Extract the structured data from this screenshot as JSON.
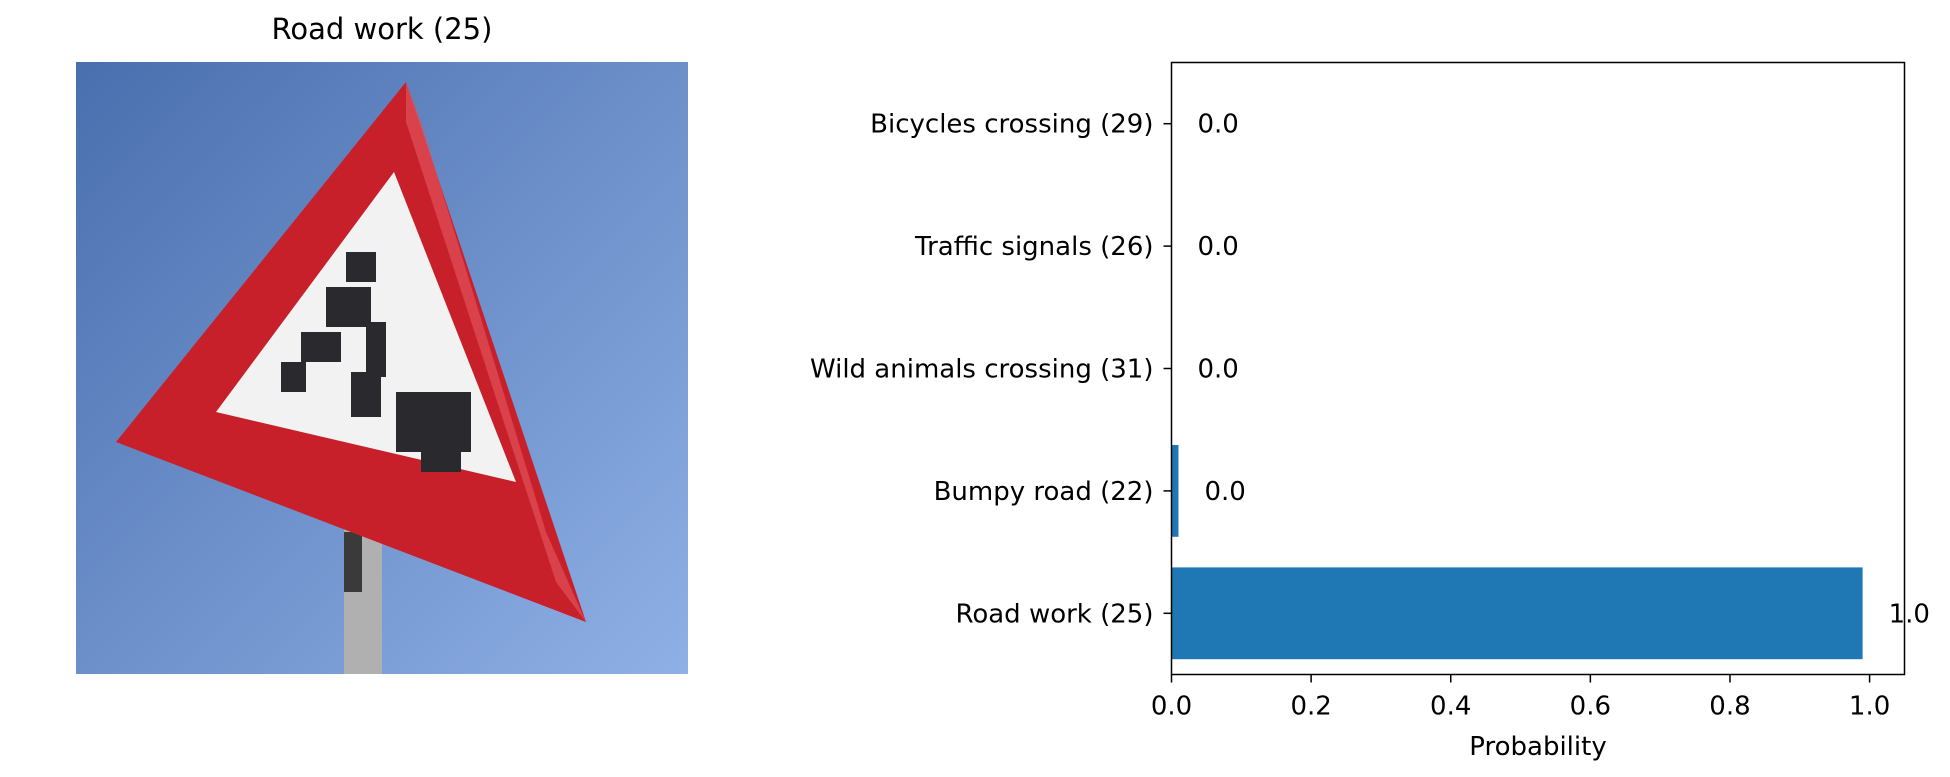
{
  "image_panel": {
    "title": "Road work (25)"
  },
  "chart_data": {
    "type": "bar",
    "orientation": "horizontal",
    "categories": [
      "Road work (25)",
      "Bumpy road (22)",
      "Wild animals crossing (31)",
      "Traffic signals (26)",
      "Bicycles crossing (29)"
    ],
    "values": [
      0.99,
      0.01,
      0.0,
      0.0,
      0.0
    ],
    "value_labels": [
      "1.0",
      "0.0",
      "0.0",
      "0.0",
      "0.0"
    ],
    "xlabel": "Probability",
    "ylabel": "",
    "xlim": [
      0,
      1.05
    ],
    "xticks": [
      0.0,
      0.2,
      0.4,
      0.6,
      0.8,
      1.0
    ],
    "xtick_labels": [
      "0.0",
      "0.2",
      "0.4",
      "0.6",
      "0.8",
      "1.0"
    ],
    "bar_color": "#1f77b4",
    "grid": false,
    "legend": false
  },
  "colors": {
    "sky_top": "#4a6fae",
    "sky_bottom": "#8fb0e6",
    "sign_red": "#c8202a",
    "sign_white": "#f2f2f2",
    "symbol_dark": "#2a2a2e",
    "post_gray": "#b0b0b0"
  }
}
